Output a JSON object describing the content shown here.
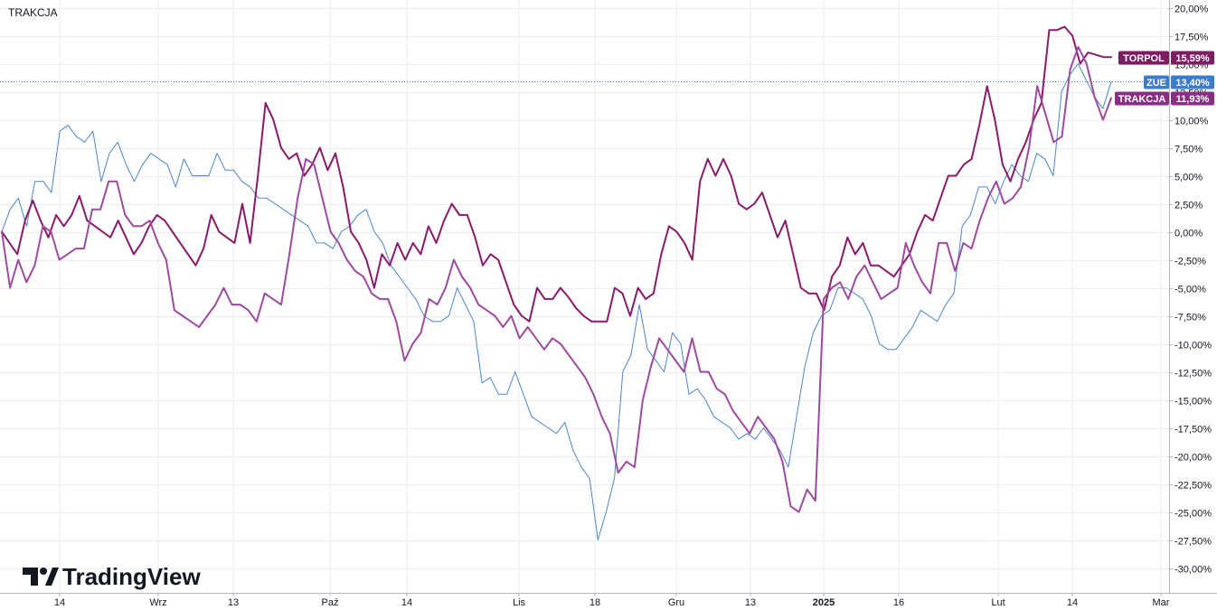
{
  "symbol_title": "TRAKCJA",
  "brand": {
    "name": "TradingView",
    "icon": "tradingview-logo-icon"
  },
  "colors": {
    "grid": "#eceef2",
    "axis": "#b2b5be",
    "ZUE": "#4a86d0",
    "TORPOL": "#8b1a6b",
    "TRAKCJA": "#9e4aa0",
    "badge_TORPOL": "#7d1d63",
    "badge_ZUE": "#3b7bd0",
    "badge_TRAKCJA": "#8a2d86"
  },
  "chart_data": {
    "type": "line",
    "title": "TRAKCJA",
    "xlabel": "",
    "ylabel": "",
    "x_ticks": [
      "14",
      "Wrz",
      "13",
      "Paź",
      "14",
      "Lis",
      "18",
      "Gru",
      "13",
      "2025",
      "16",
      "Lut",
      "14",
      "Mar"
    ],
    "y_ticks": [
      "20,00%",
      "17,50%",
      "15,00%",
      "12,50%",
      "10,00%",
      "7,50%",
      "5,00%",
      "2,50%",
      "0,00%",
      "-2,50%",
      "-5,00%",
      "-7,50%",
      "-10,00%",
      "-12,50%",
      "-15,00%",
      "-17,50%",
      "-20,00%",
      "-22,50%",
      "-25,00%",
      "-27,50%",
      "-30,00%"
    ],
    "ylim": [
      -31.0,
      20.5
    ],
    "grid": true,
    "legend": "right-axis badges",
    "current_line": {
      "series": "ZUE",
      "value": 13.4
    },
    "series": [
      {
        "name": "TORPOL",
        "last_label": "15,59%",
        "values": [
          0.0,
          -1.0,
          -2.0,
          1.0,
          2.8,
          1.0,
          -0.5,
          1.5,
          0.5,
          1.5,
          3.2,
          1.0,
          0.5,
          0.0,
          -0.5,
          1.0,
          -0.5,
          -2.0,
          -1.0,
          0.5,
          1.5,
          1.0,
          0.0,
          -1.0,
          -2.0,
          -3.0,
          -1.5,
          1.5,
          0.0,
          -0.5,
          -1.0,
          2.5,
          -1.0,
          5.0,
          11.5,
          10.0,
          7.5,
          6.5,
          7.0,
          5.0,
          6.0,
          7.5,
          5.5,
          7.0,
          4.0,
          0.0,
          -1.0,
          -2.5,
          -5.0,
          -2.0,
          -3.0,
          -1.0,
          -2.5,
          -1.0,
          -2.0,
          0.5,
          -1.0,
          1.0,
          2.5,
          1.5,
          1.5,
          -0.5,
          -3.0,
          -2.0,
          -2.5,
          -4.5,
          -6.5,
          -7.5,
          -8.0,
          -5.0,
          -6.0,
          -6.0,
          -5.0,
          -5.8,
          -6.8,
          -7.5,
          -8.0,
          -8.0,
          -8.0,
          -5.0,
          -5.5,
          -7.5,
          -5.0,
          -6.0,
          -5.5,
          -2.0,
          0.5,
          0.0,
          -1.0,
          -2.5,
          4.5,
          6.5,
          5.0,
          6.5,
          5.0,
          2.5,
          2.0,
          2.5,
          3.5,
          1.5,
          -0.5,
          1.0,
          -2.0,
          -5.0,
          -5.5,
          -5.5,
          -7.0,
          -4.0,
          -3.0,
          -0.5,
          -2.0,
          -1.0,
          -3.0,
          -3.0,
          -3.5,
          -4.0,
          -3.0,
          -2.0,
          0.0,
          1.5,
          1.0,
          3.0,
          5.0,
          5.0,
          6.0,
          6.5,
          9.5,
          13.0,
          10.0,
          6.0,
          4.5,
          6.5,
          8.0,
          10.0,
          11.5,
          18.0,
          18.0,
          18.3,
          17.5,
          15.0,
          16.0,
          15.8,
          15.6,
          15.59
        ]
      },
      {
        "name": "ZUE",
        "last_label": "13,40%",
        "values": [
          0.0,
          2.0,
          3.0,
          0.5,
          4.5,
          4.5,
          3.5,
          9.0,
          9.5,
          8.5,
          8.0,
          9.0,
          4.5,
          7.0,
          8.0,
          6.0,
          4.5,
          6.0,
          7.0,
          6.5,
          6.0,
          4.0,
          6.5,
          5.0,
          5.0,
          5.0,
          7.0,
          5.5,
          5.5,
          4.5,
          4.0,
          3.0,
          3.0,
          2.5,
          2.0,
          1.5,
          1.0,
          0.5,
          -1.0,
          -1.0,
          -1.5,
          0.0,
          0.5,
          1.5,
          2.0,
          0.0,
          -1.0,
          -3.0,
          -4.0,
          -5.0,
          -6.0,
          -7.5,
          -8.0,
          -8.0,
          -7.5,
          -5.0,
          -6.5,
          -8.0,
          -13.5,
          -13.0,
          -14.5,
          -14.5,
          -12.5,
          -14.5,
          -16.5,
          -17.0,
          -17.5,
          -18.0,
          -17.0,
          -19.5,
          -21.0,
          -22.0,
          -27.5,
          -25.0,
          -22.0,
          -12.5,
          -11.0,
          -6.5,
          -10.5,
          -11.5,
          -12.5,
          -9.0,
          -10.0,
          -14.5,
          -14.0,
          -15.0,
          -16.5,
          -17.0,
          -17.5,
          -18.5,
          -18.0,
          -18.5,
          -17.5,
          -18.5,
          -19.5,
          -21.0,
          -16.5,
          -12.0,
          -9.0,
          -7.5,
          -7.0,
          -5.0,
          -5.0,
          -5.5,
          -6.0,
          -7.5,
          -10.0,
          -10.5,
          -10.5,
          -9.5,
          -8.5,
          -7.0,
          -7.5,
          -8.0,
          -6.5,
          -5.5,
          0.5,
          1.5,
          4.0,
          4.0,
          2.5,
          4.5,
          6.0,
          5.0,
          4.5,
          7.0,
          6.5,
          5.0,
          12.5,
          14.0,
          15.0,
          13.5,
          12.0,
          11.0,
          13.4
        ]
      },
      {
        "name": "TRAKCJA",
        "last_label": "11,93%",
        "values": [
          0.0,
          -5.0,
          -2.5,
          -4.5,
          -3.0,
          0.5,
          0.0,
          -2.5,
          -2.0,
          -1.5,
          -1.5,
          2.0,
          2.0,
          4.5,
          4.5,
          1.5,
          0.5,
          0.5,
          1.0,
          -1.0,
          -2.5,
          -7.0,
          -7.5,
          -8.0,
          -8.5,
          -7.5,
          -6.5,
          -5.0,
          -6.5,
          -6.5,
          -7.0,
          -8.0,
          -5.5,
          -6.0,
          -6.5,
          -2.0,
          3.0,
          6.5,
          6.0,
          3.0,
          0.0,
          -1.0,
          -2.5,
          -3.5,
          -4.0,
          -5.5,
          -6.0,
          -6.0,
          -8.0,
          -11.5,
          -10.0,
          -9.0,
          -6.0,
          -6.5,
          -5.0,
          -2.5,
          -4.0,
          -5.0,
          -6.5,
          -7.0,
          -7.5,
          -8.5,
          -7.5,
          -9.5,
          -8.5,
          -9.5,
          -10.5,
          -9.5,
          -10.0,
          -11.0,
          -12.0,
          -13.0,
          -14.5,
          -16.5,
          -18.0,
          -21.5,
          -20.5,
          -21.0,
          -15.0,
          -12.0,
          -9.5,
          -10.5,
          -11.5,
          -12.5,
          -9.5,
          -12.5,
          -12.5,
          -14.0,
          -14.5,
          -16.0,
          -17.0,
          -18.0,
          -16.5,
          -17.5,
          -18.5,
          -20.5,
          -24.5,
          -25.0,
          -23.0,
          -24.0,
          -6.0,
          -5.0,
          -4.5,
          -6.0,
          -4.0,
          -3.0,
          -4.5,
          -6.0,
          -5.5,
          -5.0,
          -1.0,
          -3.0,
          -4.5,
          -5.5,
          -1.0,
          -1.0,
          -3.5,
          -1.0,
          -1.5,
          1.0,
          3.0,
          4.5,
          2.5,
          3.0,
          4.0,
          7.5,
          13.0,
          10.5,
          8.0,
          8.5,
          14.5,
          16.5,
          15.0,
          12.0,
          10.0,
          11.93
        ]
      }
    ]
  }
}
